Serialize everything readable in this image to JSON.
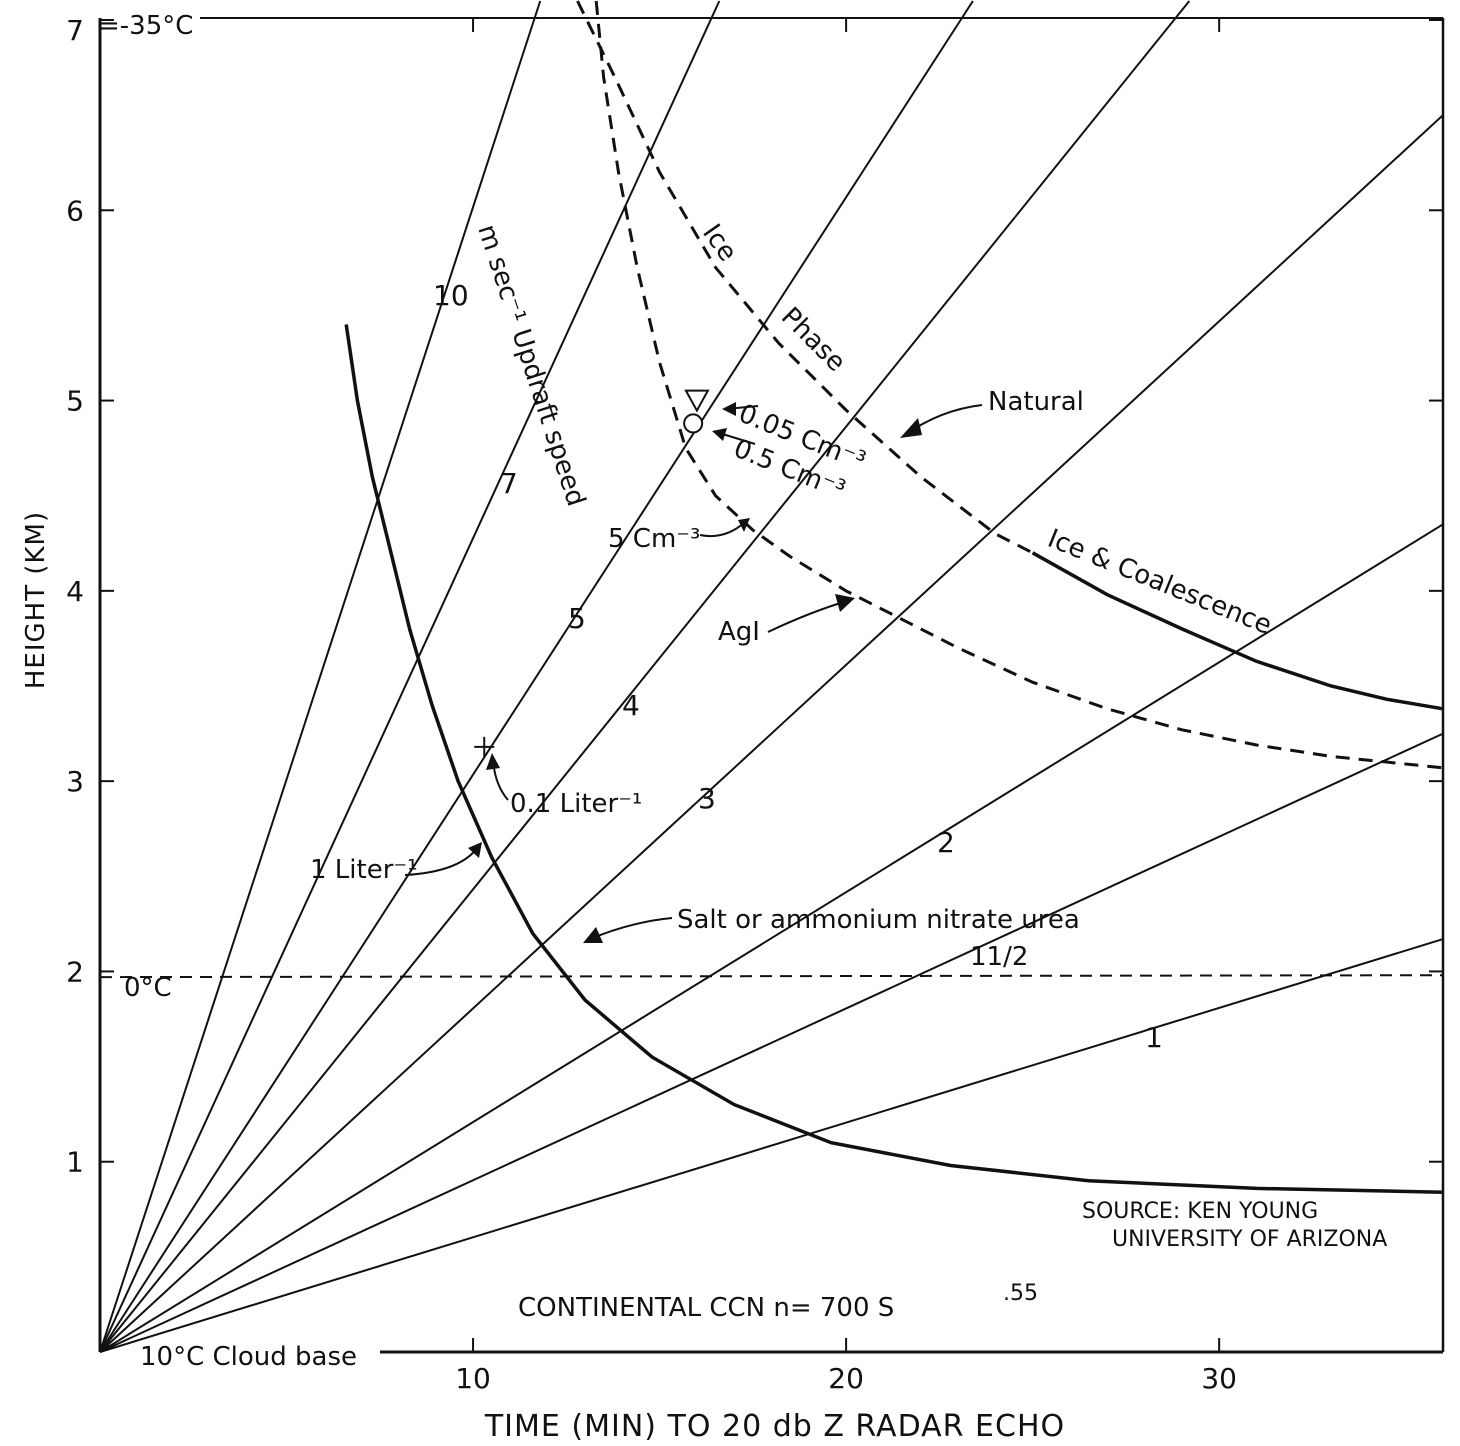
{
  "chart_data": {
    "type": "line",
    "title": "",
    "xlabel": "TIME (MIN) TO 20 db Z RADAR ECHO",
    "ylabel": "HEIGHT (KM)",
    "xlim": [
      0,
      36
    ],
    "ylim": [
      0,
      7
    ],
    "x_ticks": [
      10,
      20,
      30
    ],
    "y_ticks": [
      1,
      2,
      3,
      4,
      5,
      6,
      7
    ],
    "grid": false,
    "series": [
      {
        "name": "10",
        "kind": "updraft",
        "points": [
          [
            0,
            0
          ],
          [
            11.8,
            7.1
          ]
        ]
      },
      {
        "name": "7",
        "kind": "updraft",
        "points": [
          [
            0,
            0
          ],
          [
            16.6,
            7.1
          ]
        ]
      },
      {
        "name": "5",
        "kind": "updraft",
        "points": [
          [
            0,
            0
          ],
          [
            23.4,
            7.1
          ]
        ]
      },
      {
        "name": "4",
        "kind": "updraft",
        "points": [
          [
            0,
            0
          ],
          [
            29.2,
            7.1
          ]
        ]
      },
      {
        "name": "3",
        "kind": "updraft",
        "points": [
          [
            0,
            0
          ],
          [
            36,
            6.5
          ]
        ]
      },
      {
        "name": "2",
        "kind": "updraft",
        "points": [
          [
            0,
            0
          ],
          [
            36,
            4.35
          ]
        ]
      },
      {
        "name": "11/2",
        "kind": "updraft",
        "points": [
          [
            0,
            0
          ],
          [
            36,
            3.25
          ]
        ]
      },
      {
        "name": "1",
        "kind": "updraft",
        "points": [
          [
            0,
            0
          ],
          [
            36,
            2.17
          ]
        ]
      },
      {
        "name": "Salt or ammonium nitrate urea",
        "kind": "solid-curve",
        "points": [
          [
            6.6,
            5.4
          ],
          [
            6.9,
            5.0
          ],
          [
            7.3,
            4.6
          ],
          [
            7.8,
            4.2
          ],
          [
            8.3,
            3.8
          ],
          [
            8.9,
            3.4
          ],
          [
            9.6,
            3.0
          ],
          [
            10.5,
            2.6
          ],
          [
            11.6,
            2.2
          ],
          [
            13.0,
            1.85
          ],
          [
            14.8,
            1.55
          ],
          [
            17.0,
            1.3
          ],
          [
            19.6,
            1.1
          ],
          [
            22.8,
            0.98
          ],
          [
            26.5,
            0.9
          ],
          [
            31.0,
            0.86
          ],
          [
            36.0,
            0.84
          ]
        ]
      },
      {
        "name": "Ice Phase Natural",
        "kind": "dashed-curve",
        "points": [
          [
            12.8,
            7.1
          ],
          [
            13.8,
            6.7
          ],
          [
            15.0,
            6.2
          ],
          [
            16.5,
            5.7
          ],
          [
            18.2,
            5.3
          ],
          [
            20.0,
            4.95
          ],
          [
            22.0,
            4.6
          ],
          [
            24.0,
            4.3
          ],
          [
            25.0,
            4.2
          ]
        ]
      },
      {
        "name": "Ice & Coalescence",
        "kind": "solid-curve",
        "points": [
          [
            25.0,
            4.2
          ],
          [
            27.0,
            3.98
          ],
          [
            29.0,
            3.8
          ],
          [
            31.0,
            3.63
          ],
          [
            33.0,
            3.5
          ],
          [
            34.5,
            3.43
          ],
          [
            36.0,
            3.38
          ]
        ]
      },
      {
        "name": "AgI",
        "kind": "dashed-curve",
        "points": [
          [
            13.3,
            7.1
          ],
          [
            13.5,
            6.7
          ],
          [
            13.9,
            6.2
          ],
          [
            14.4,
            5.7
          ],
          [
            15.0,
            5.2
          ],
          [
            15.7,
            4.75
          ],
          [
            16.5,
            4.5
          ],
          [
            17.5,
            4.32
          ],
          [
            18.5,
            4.18
          ],
          [
            20.0,
            4.0
          ],
          [
            21.5,
            3.85
          ],
          [
            23.0,
            3.7
          ],
          [
            25.0,
            3.52
          ],
          [
            27.0,
            3.38
          ],
          [
            29.0,
            3.27
          ],
          [
            31.0,
            3.19
          ],
          [
            33.0,
            3.13
          ],
          [
            36.0,
            3.07
          ]
        ]
      },
      {
        "name": "0°C",
        "kind": "dashed-horizontal",
        "points": [
          [
            0,
            1.97
          ],
          [
            36,
            1.98
          ]
        ]
      }
    ],
    "markers": [
      {
        "label": "0.05 Cm⁻³",
        "shape": "triangle",
        "x": 16.0,
        "y": 5.0
      },
      {
        "label": "0.5 Cm⁻³",
        "shape": "circle",
        "x": 15.9,
        "y": 4.88
      },
      {
        "label": "0.1 Liter⁻¹",
        "shape": "cross",
        "x": 10.3,
        "y": 3.18
      }
    ],
    "annotations": {
      "updraft_title": "m sec⁻¹ Updraft speed",
      "updraft_labels": [
        "10",
        "7",
        "5",
        "4",
        "3",
        "2",
        "11/2",
        "1"
      ],
      "top_temp": "7",
      "top_temp_label": "=-35°C",
      "zero_c": "0°C",
      "cloud_base": "10°C Cloud base",
      "ice_word": "Ice",
      "phase_word": "Phase",
      "natural": "Natural",
      "ice_coalescence": "Ice & Coalescence",
      "agi": "AgI",
      "salt": "Salt or ammonium  nitrate urea",
      "five_cm": "5 Cm⁻³",
      "one_liter": "1 Liter⁻¹",
      "point_one_liter": "0.1 Liter⁻¹",
      "point_zero_five": "0.05 Cm⁻³",
      "point_five": "0.5 Cm⁻³",
      "source_line1": "SOURCE: KEN YOUNG",
      "source_line2": "UNIVERSITY OF ARIZONA",
      "ccn": "CONTINENTAL  CCN  n= 700 S",
      "ccn_exp": ".55"
    }
  }
}
